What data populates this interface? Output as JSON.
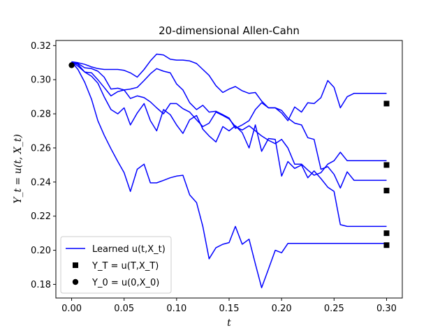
{
  "chart_data": {
    "type": "line",
    "title": "20-dimensional Allen-Cahn",
    "xlabel": "t",
    "ylabel": "Y_t = u(t, X_t)",
    "xlim": [
      -0.015,
      0.315
    ],
    "ylim": [
      0.172,
      0.323
    ],
    "xticks": [
      0.0,
      0.05,
      0.1,
      0.15,
      0.2,
      0.25,
      0.3
    ],
    "xtick_labels": [
      "0.00",
      "0.05",
      "0.10",
      "0.15",
      "0.20",
      "0.25",
      "0.30"
    ],
    "yticks": [
      0.18,
      0.2,
      0.22,
      0.24,
      0.26,
      0.28,
      0.3,
      0.32
    ],
    "ytick_labels": [
      "0.18",
      "0.20",
      "0.22",
      "0.24",
      "0.26",
      "0.28",
      "0.30",
      "0.32"
    ],
    "grid": false,
    "legend_position": "lower-left",
    "legend": [
      {
        "label": "Learned u(t,X_t)",
        "kind": "line"
      },
      {
        "label": "Y_T = u(T,X_T)",
        "kind": "square"
      },
      {
        "label": "Y_0 = u(0,X_0)",
        "kind": "circle"
      }
    ],
    "line_color": "#0000ff",
    "x": [
      0.0,
      0.006,
      0.0125,
      0.019,
      0.025,
      0.031,
      0.0375,
      0.044,
      0.05,
      0.056,
      0.0625,
      0.069,
      0.075,
      0.081,
      0.0875,
      0.094,
      0.1,
      0.106,
      0.1125,
      0.119,
      0.125,
      0.131,
      0.1375,
      0.144,
      0.15,
      0.156,
      0.1625,
      0.169,
      0.175,
      0.181,
      0.1875,
      0.194,
      0.2,
      0.206,
      0.2125,
      0.219,
      0.225,
      0.231,
      0.2375,
      0.244,
      0.25,
      0.256,
      0.2625,
      0.269,
      0.275,
      0.281,
      0.2875,
      0.294,
      0.3
    ],
    "series": [
      {
        "values": [
          0.3105,
          0.31,
          0.309,
          0.3075,
          0.3065,
          0.306,
          0.306,
          0.306,
          0.3055,
          0.304,
          0.3015,
          0.306,
          0.311,
          0.315,
          0.3145,
          0.312,
          0.3115,
          0.3115,
          0.311,
          0.3095,
          0.306,
          0.3025,
          0.2965,
          0.2925,
          0.2945,
          0.296,
          0.2935,
          0.292,
          0.2925,
          0.2875,
          0.2835,
          0.2835,
          0.2805,
          0.276,
          0.284,
          0.281,
          0.2865,
          0.286,
          0.2895,
          0.2995,
          0.2955,
          0.2835,
          0.29,
          0.292,
          0.292,
          0.292,
          0.292,
          0.292,
          0.292
        ]
      },
      {
        "values": [
          0.31,
          0.3095,
          0.307,
          0.3065,
          0.305,
          0.3015,
          0.2945,
          0.295,
          0.294,
          0.2945,
          0.2955,
          0.2995,
          0.3035,
          0.3065,
          0.305,
          0.304,
          0.2975,
          0.294,
          0.2865,
          0.2825,
          0.285,
          0.281,
          0.2815,
          0.2795,
          0.2775,
          0.2715,
          0.2735,
          0.276,
          0.2825,
          0.2865,
          0.2835,
          0.2835,
          0.282,
          0.2775,
          0.2745,
          0.2735,
          0.266,
          0.265,
          0.2475,
          0.249,
          0.2445,
          0.2365,
          0.246,
          0.241,
          0.241,
          0.241,
          0.241,
          0.241,
          0.241
        ]
      },
      {
        "values": [
          0.3105,
          0.309,
          0.3045,
          0.304,
          0.3,
          0.2955,
          0.2905,
          0.293,
          0.294,
          0.289,
          0.2905,
          0.2895,
          0.287,
          0.2835,
          0.28,
          0.286,
          0.286,
          0.283,
          0.281,
          0.2765,
          0.2725,
          0.2745,
          0.281,
          0.279,
          0.277,
          0.2725,
          0.2705,
          0.273,
          0.27,
          0.267,
          0.2645,
          0.2625,
          0.265,
          0.26,
          0.2505,
          0.2505,
          0.247,
          0.244,
          0.2455,
          0.2505,
          0.2525,
          0.2575,
          0.2525,
          0.2525,
          0.2525,
          0.2525,
          0.2525,
          0.2525,
          0.2525
        ]
      },
      {
        "values": [
          0.3105,
          0.308,
          0.3045,
          0.302,
          0.298,
          0.29,
          0.2825,
          0.28,
          0.2835,
          0.2735,
          0.2805,
          0.286,
          0.276,
          0.27,
          0.2825,
          0.2795,
          0.2735,
          0.2685,
          0.2765,
          0.279,
          0.271,
          0.267,
          0.2635,
          0.2725,
          0.27,
          0.273,
          0.269,
          0.26,
          0.2735,
          0.258,
          0.2655,
          0.265,
          0.2435,
          0.252,
          0.248,
          0.25,
          0.2425,
          0.2465,
          0.242,
          0.237,
          0.2345,
          0.215,
          0.214,
          0.214,
          0.214,
          0.214,
          0.214,
          0.214,
          0.214
        ]
      },
      {
        "values": [
          0.3105,
          0.306,
          0.2985,
          0.2885,
          0.276,
          0.2675,
          0.2595,
          0.252,
          0.2455,
          0.2345,
          0.2475,
          0.2505,
          0.2395,
          0.2395,
          0.241,
          0.2425,
          0.2435,
          0.244,
          0.2325,
          0.228,
          0.214,
          0.195,
          0.2015,
          0.2035,
          0.2045,
          0.214,
          0.2035,
          0.2065,
          0.192,
          0.178,
          0.189,
          0.2,
          0.1985,
          0.204,
          0.204,
          0.204,
          0.204,
          0.204,
          0.204,
          0.204,
          0.204,
          0.204,
          0.204,
          0.204,
          0.204,
          0.204,
          0.204,
          0.204,
          0.204
        ]
      }
    ],
    "terminal_points": {
      "x": 0.3,
      "values": [
        0.286,
        0.25,
        0.235,
        0.21,
        0.203
      ]
    },
    "initial_point": {
      "x": 0.0,
      "value": 0.3085
    }
  }
}
